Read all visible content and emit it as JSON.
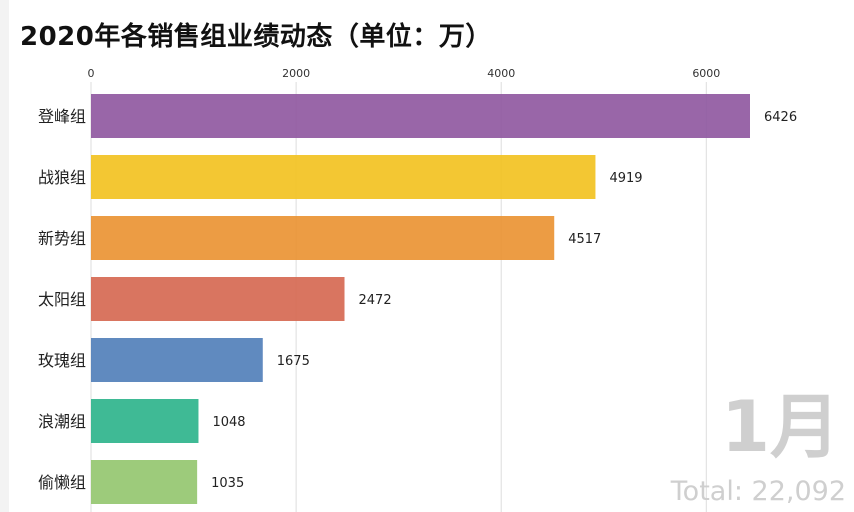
{
  "title": "2020年各销售组业绩动态（单位：万）",
  "period_label": "1月",
  "total_label": "Total: 22,092",
  "chart_data": {
    "type": "bar",
    "orientation": "horizontal",
    "title": "2020年各销售组业绩动态（单位：万）",
    "categories": [
      "登峰组",
      "战狼组",
      "新势组",
      "太阳组",
      "玫瑰组",
      "浪潮组",
      "偷懒组"
    ],
    "values": [
      6426,
      4919,
      4517,
      2472,
      1675,
      1048,
      1035
    ],
    "colors": [
      "#8e559e",
      "#f2c11d",
      "#ea9130",
      "#d5664f",
      "#4f7db8",
      "#2ab38a",
      "#92c56d"
    ],
    "x_ticks": [
      0,
      2000,
      4000,
      6000
    ],
    "xlim": [
      0,
      6426
    ],
    "grid": true,
    "xaxis_position": "top"
  }
}
